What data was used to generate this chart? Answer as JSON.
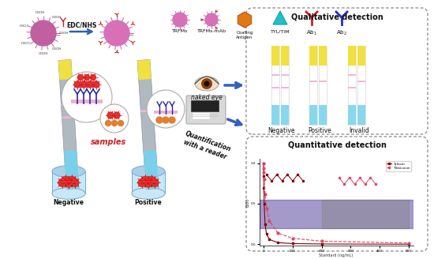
{
  "bg_color": "#ffffff",
  "legend_items": [
    "TRFMs",
    "TRFMs-mAb",
    "Coating\nAntigen",
    "TYL/TIM",
    "Ab₁",
    "Ab₂"
  ],
  "qualitative_title": "Qualitative detection",
  "quantitative_title": "Quantitative detection",
  "negative_label": "Negative",
  "positive_label": "Positive",
  "invalid_label": "Invalid",
  "edcnhs_label": "EDC/NHS",
  "samples_label": "samples",
  "naked_eye_label": "naked eye",
  "quantification_label": "Quantification\nwith a reader",
  "strip_yellow": "#f0e040",
  "strip_blue": "#87ceeb",
  "strip_pink": "#f0b8d8",
  "dashed_box_color": "#888888",
  "arrow_color": "#3070c0"
}
